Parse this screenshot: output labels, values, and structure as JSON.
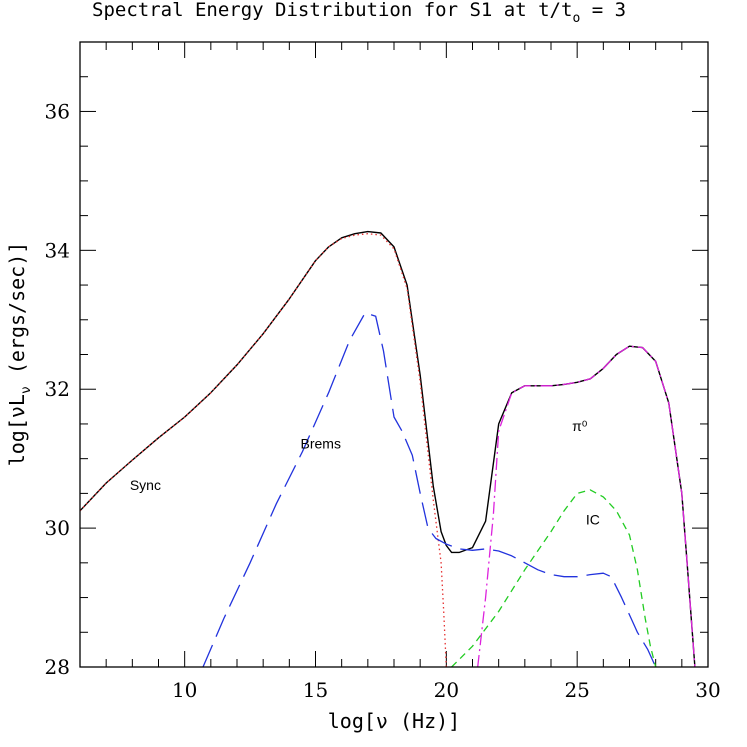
{
  "chart_data": {
    "type": "line",
    "title": "Spectral Energy Distribution for S1 at t/t",
    "title_sub": "o",
    "title_suffix": " = 3",
    "xlabel": "log[ν (Hz)]",
    "ylabel_prefix": "log[νL",
    "ylabel_sub": "ν",
    "ylabel_suffix": " (ergs/sec)]",
    "xlim": [
      6,
      30
    ],
    "ylim": [
      28,
      37
    ],
    "xticks": [
      10,
      15,
      20,
      25,
      30
    ],
    "yticks": [
      28,
      30,
      32,
      34,
      36
    ],
    "annotations": [
      {
        "text": "Sync",
        "x": 8.5,
        "y": 30.55
      },
      {
        "text": "Brems",
        "x": 15.2,
        "y": 31.15
      },
      {
        "text": "π⁰",
        "x": 25.1,
        "y": 31.4
      },
      {
        "text": "IC",
        "x": 25.6,
        "y": 30.05
      }
    ],
    "series": [
      {
        "style": "solid",
        "color": "#000000",
        "x": [
          6,
          7,
          8,
          9,
          10,
          11,
          12,
          13,
          14,
          15,
          15.5,
          16,
          16.5,
          17,
          17.5,
          18,
          18.5,
          19,
          19.5,
          19.8,
          20,
          20.2,
          20.5,
          21,
          21.5,
          22,
          22.5,
          23,
          23.5,
          24,
          24.5,
          25,
          25.5,
          26,
          26.5,
          27,
          27.5,
          28,
          28.5,
          29,
          29.2,
          29.4,
          29.5
        ],
        "y": [
          30.25,
          30.65,
          30.98,
          31.3,
          31.6,
          31.95,
          32.35,
          32.8,
          33.3,
          33.85,
          34.05,
          34.18,
          34.24,
          34.27,
          34.25,
          34.05,
          33.5,
          32.2,
          30.6,
          29.95,
          29.75,
          29.65,
          29.65,
          29.72,
          30.1,
          31.5,
          31.95,
          32.05,
          32.05,
          32.05,
          32.07,
          32.1,
          32.15,
          32.3,
          32.5,
          32.62,
          32.6,
          32.4,
          31.8,
          30.5,
          29.5,
          28.5,
          28
        ]
      },
      {
        "style": "dotted",
        "color": "#e53030",
        "x": [
          6,
          7,
          8,
          9,
          10,
          11,
          12,
          13,
          14,
          15,
          15.5,
          16,
          16.5,
          17,
          17.5,
          18,
          18.5,
          19,
          19.5,
          19.8,
          19.9,
          20
        ],
        "y": [
          30.25,
          30.65,
          30.98,
          31.3,
          31.6,
          31.95,
          32.35,
          32.8,
          33.3,
          33.85,
          34.05,
          34.17,
          34.22,
          34.24,
          34.22,
          34.02,
          33.45,
          32.1,
          30.4,
          29.5,
          28.8,
          28
        ]
      },
      {
        "style": "longdash",
        "color": "#2233dd",
        "x": [
          10.7,
          11.5,
          12.5,
          13.5,
          14.5,
          15.5,
          16.3,
          16.9,
          17.3,
          17.6,
          18,
          18.3,
          18.7,
          19,
          19.3,
          19.6,
          20,
          20.5,
          21,
          21.5,
          22,
          22.5,
          23,
          23.5,
          24,
          24.5,
          25,
          25.5,
          26,
          26.3,
          26.7,
          27,
          27.3,
          27.7,
          28
        ],
        "y": [
          28,
          28.7,
          29.5,
          30.35,
          31.1,
          31.95,
          32.7,
          33.1,
          33.05,
          32.55,
          31.6,
          31.4,
          31.05,
          30.5,
          30.0,
          29.85,
          29.77,
          29.7,
          29.68,
          29.7,
          29.67,
          29.6,
          29.5,
          29.4,
          29.33,
          29.3,
          29.3,
          29.33,
          29.35,
          29.3,
          29.0,
          28.75,
          28.5,
          28.25,
          28
        ]
      },
      {
        "style": "dashed",
        "color": "#22cc22",
        "x": [
          20.2,
          21,
          22,
          23,
          24,
          24.5,
          25,
          25.5,
          26,
          26.5,
          27,
          27.3,
          27.6,
          27.8,
          28
        ],
        "y": [
          28,
          28.3,
          28.8,
          29.4,
          29.95,
          30.25,
          30.5,
          30.55,
          30.45,
          30.25,
          29.9,
          29.4,
          28.7,
          28.3,
          28
        ]
      },
      {
        "style": "dashdot",
        "color": "#dd22dd",
        "x": [
          21.2,
          21.5,
          21.8,
          22,
          22.5,
          23,
          23.5,
          24,
          24.5,
          25,
          25.5,
          26,
          26.5,
          27,
          27.5,
          28,
          28.5,
          29,
          29.2,
          29.4,
          29.5
        ],
        "y": [
          28,
          29.0,
          30.2,
          31.4,
          31.95,
          32.05,
          32.05,
          32.05,
          32.07,
          32.1,
          32.15,
          32.3,
          32.5,
          32.62,
          32.6,
          32.4,
          31.8,
          30.5,
          29.5,
          28.5,
          28
        ]
      }
    ]
  }
}
